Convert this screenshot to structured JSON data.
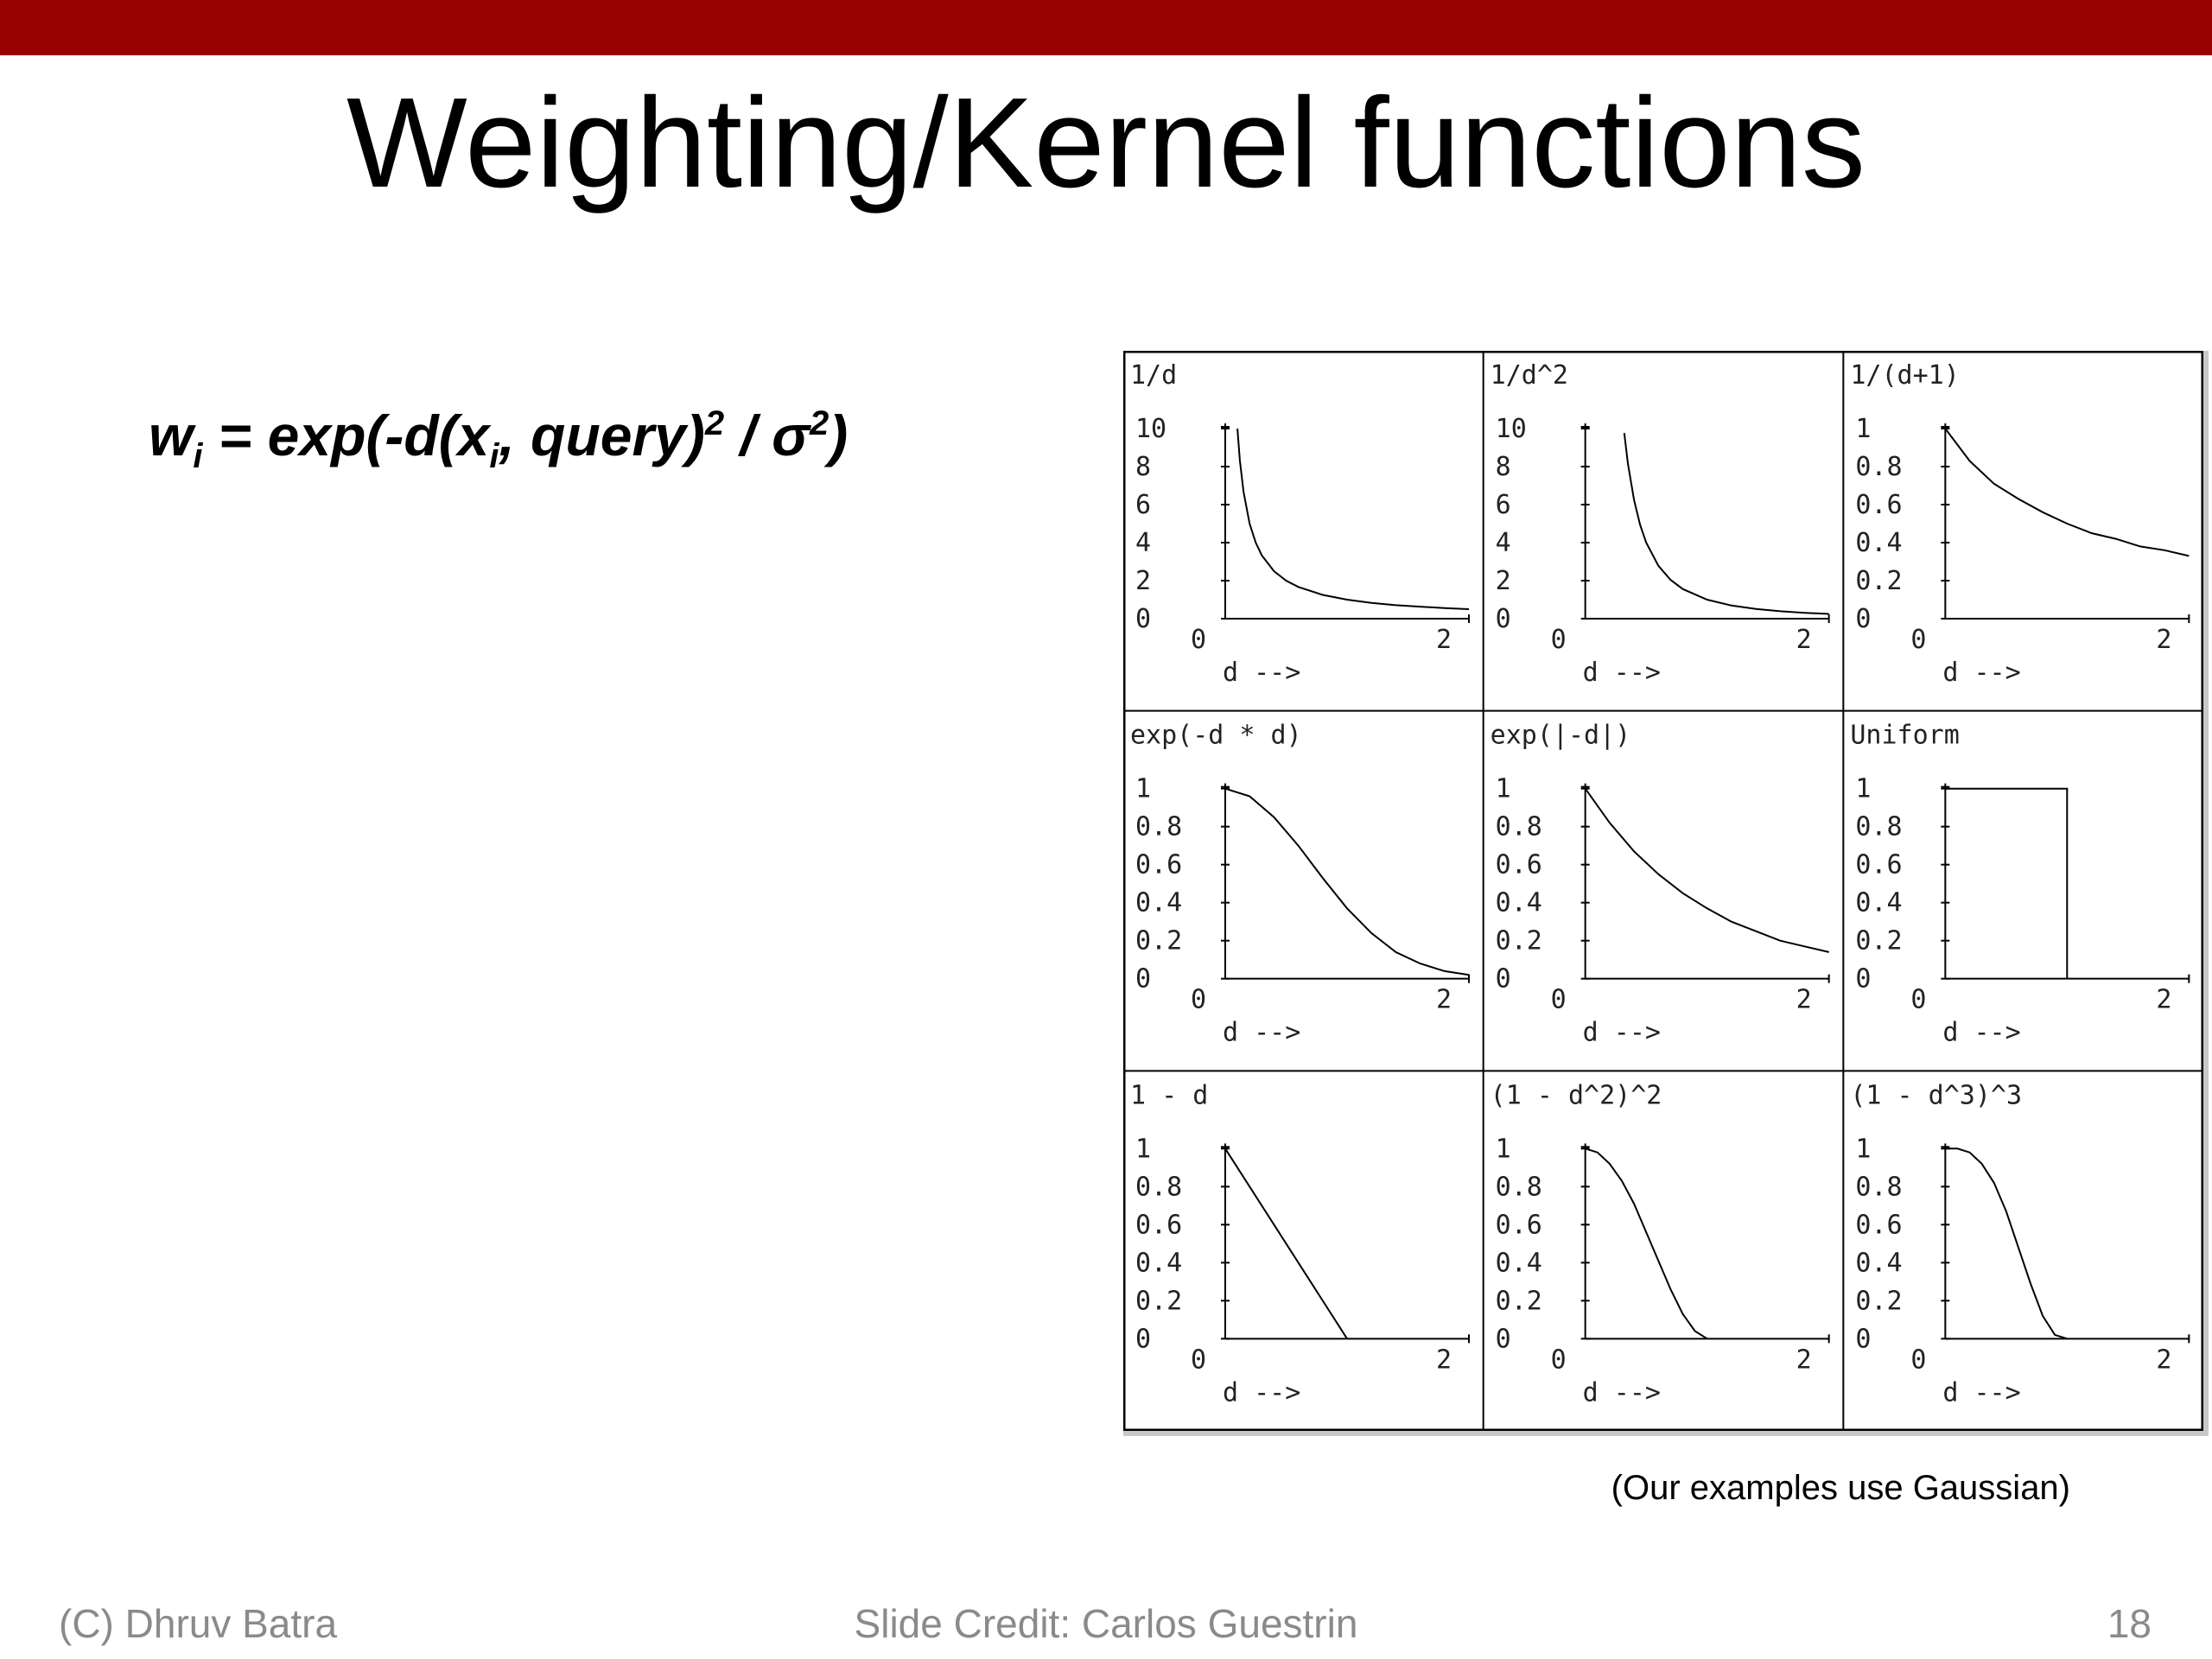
{
  "slide": {
    "title": "Weighting/Kernel functions",
    "formula": {
      "w": "w",
      "i": "i",
      "part1": " = exp(-d(x",
      "part2": ", query)",
      "two_a": "2",
      "part3": " / σ",
      "two_b": "2",
      "part4": ")"
    },
    "caption": "(Our examples use Gaussian)",
    "footer_left": "(C) Dhruv Batra",
    "footer_center": "Slide Credit: Carlos Guestrin",
    "page_number": "18"
  },
  "colors": {
    "top_bar": "#990000",
    "footer_text": "#8a8a8a",
    "curve": "#000000"
  },
  "chart_data": [
    {
      "type": "line",
      "title": "1/d",
      "xlabel": "d -->",
      "xlim": [
        0,
        2
      ],
      "ylim": [
        0,
        10
      ],
      "x_ticks": [
        "0",
        "2"
      ],
      "y_ticks": [
        "10",
        "8",
        "6",
        "4",
        "2",
        "0"
      ],
      "x": [
        0.1,
        0.12,
        0.15,
        0.2,
        0.25,
        0.3,
        0.4,
        0.5,
        0.6,
        0.8,
        1.0,
        1.2,
        1.4,
        1.6,
        1.8,
        2.0
      ],
      "values": [
        10,
        8.33,
        6.67,
        5,
        4,
        3.33,
        2.5,
        2,
        1.67,
        1.25,
        1,
        0.83,
        0.71,
        0.63,
        0.56,
        0.5
      ]
    },
    {
      "type": "line",
      "title": "1/d^2",
      "xlabel": "d -->",
      "xlim": [
        0,
        2
      ],
      "ylim": [
        0,
        10
      ],
      "x_ticks": [
        "0",
        "2"
      ],
      "y_ticks": [
        "10",
        "8",
        "6",
        "4",
        "2",
        "0"
      ],
      "x": [
        0.32,
        0.35,
        0.4,
        0.45,
        0.5,
        0.6,
        0.7,
        0.8,
        1.0,
        1.2,
        1.4,
        1.6,
        1.8,
        2.0
      ],
      "values": [
        9.77,
        8.16,
        6.25,
        4.94,
        4,
        2.78,
        2.04,
        1.56,
        1,
        0.69,
        0.51,
        0.39,
        0.31,
        0.25
      ]
    },
    {
      "type": "line",
      "title": "1/(d+1)",
      "xlabel": "d -->",
      "xlim": [
        0,
        2
      ],
      "ylim": [
        0,
        1
      ],
      "x_ticks": [
        "0",
        "2"
      ],
      "y_ticks": [
        "1",
        "0.8",
        "0.6",
        "0.4",
        "0.2",
        "0"
      ],
      "x": [
        0,
        0.2,
        0.4,
        0.6,
        0.8,
        1.0,
        1.2,
        1.4,
        1.6,
        1.8,
        2.0
      ],
      "values": [
        1,
        0.83,
        0.71,
        0.63,
        0.56,
        0.5,
        0.45,
        0.42,
        0.38,
        0.36,
        0.33
      ]
    },
    {
      "type": "line",
      "title": "exp(-d * d)",
      "xlabel": "d -->",
      "xlim": [
        0,
        2
      ],
      "ylim": [
        0,
        1
      ],
      "x_ticks": [
        "0",
        "2"
      ],
      "y_ticks": [
        "1",
        "0.8",
        "0.6",
        "0.4",
        "0.2",
        "0"
      ],
      "x": [
        0,
        0.2,
        0.4,
        0.6,
        0.8,
        1.0,
        1.2,
        1.4,
        1.6,
        1.8,
        2.0
      ],
      "values": [
        1,
        0.96,
        0.85,
        0.7,
        0.53,
        0.37,
        0.24,
        0.14,
        0.08,
        0.04,
        0.02
      ]
    },
    {
      "type": "line",
      "title": "exp(|-d|)",
      "xlabel": "d -->",
      "xlim": [
        0,
        2
      ],
      "ylim": [
        0,
        1
      ],
      "x_ticks": [
        "0",
        "2"
      ],
      "y_ticks": [
        "1",
        "0.8",
        "0.6",
        "0.4",
        "0.2",
        "0"
      ],
      "x": [
        0,
        0.2,
        0.4,
        0.6,
        0.8,
        1.0,
        1.2,
        1.4,
        1.6,
        1.8,
        2.0
      ],
      "values": [
        1,
        0.82,
        0.67,
        0.55,
        0.45,
        0.37,
        0.3,
        0.25,
        0.2,
        0.17,
        0.14
      ]
    },
    {
      "type": "line",
      "title": "Uniform",
      "xlabel": "d -->",
      "xlim": [
        0,
        2
      ],
      "ylim": [
        0,
        1
      ],
      "x_ticks": [
        "0",
        "2"
      ],
      "y_ticks": [
        "1",
        "0.8",
        "0.6",
        "0.4",
        "0.2",
        "0"
      ],
      "x": [
        0,
        1.0,
        1.0
      ],
      "values": [
        1,
        1,
        0
      ]
    },
    {
      "type": "line",
      "title": "1 - d",
      "xlabel": "d -->",
      "xlim": [
        0,
        2
      ],
      "ylim": [
        0,
        1
      ],
      "x_ticks": [
        "0",
        "2"
      ],
      "y_ticks": [
        "1",
        "0.8",
        "0.6",
        "0.4",
        "0.2",
        "0"
      ],
      "x": [
        0,
        1.0
      ],
      "values": [
        1,
        0
      ]
    },
    {
      "type": "line",
      "title": "(1 - d^2)^2",
      "xlabel": "d -->",
      "xlim": [
        0,
        2
      ],
      "ylim": [
        0,
        1
      ],
      "x_ticks": [
        "0",
        "2"
      ],
      "y_ticks": [
        "1",
        "0.8",
        "0.6",
        "0.4",
        "0.2",
        "0"
      ],
      "x": [
        0,
        0.1,
        0.2,
        0.3,
        0.4,
        0.5,
        0.6,
        0.7,
        0.8,
        0.9,
        1.0
      ],
      "values": [
        1,
        0.98,
        0.92,
        0.83,
        0.71,
        0.56,
        0.41,
        0.26,
        0.13,
        0.04,
        0
      ]
    },
    {
      "type": "line",
      "title": "(1 - d^3)^3",
      "xlabel": "d -->",
      "xlim": [
        0,
        2
      ],
      "ylim": [
        0,
        1
      ],
      "x_ticks": [
        "0",
        "2"
      ],
      "y_ticks": [
        "1",
        "0.8",
        "0.6",
        "0.4",
        "0.2",
        "0"
      ],
      "x": [
        0,
        0.1,
        0.2,
        0.3,
        0.4,
        0.5,
        0.6,
        0.7,
        0.8,
        0.9,
        1.0
      ],
      "values": [
        1,
        1,
        0.98,
        0.92,
        0.82,
        0.67,
        0.48,
        0.29,
        0.12,
        0.02,
        0
      ]
    }
  ]
}
